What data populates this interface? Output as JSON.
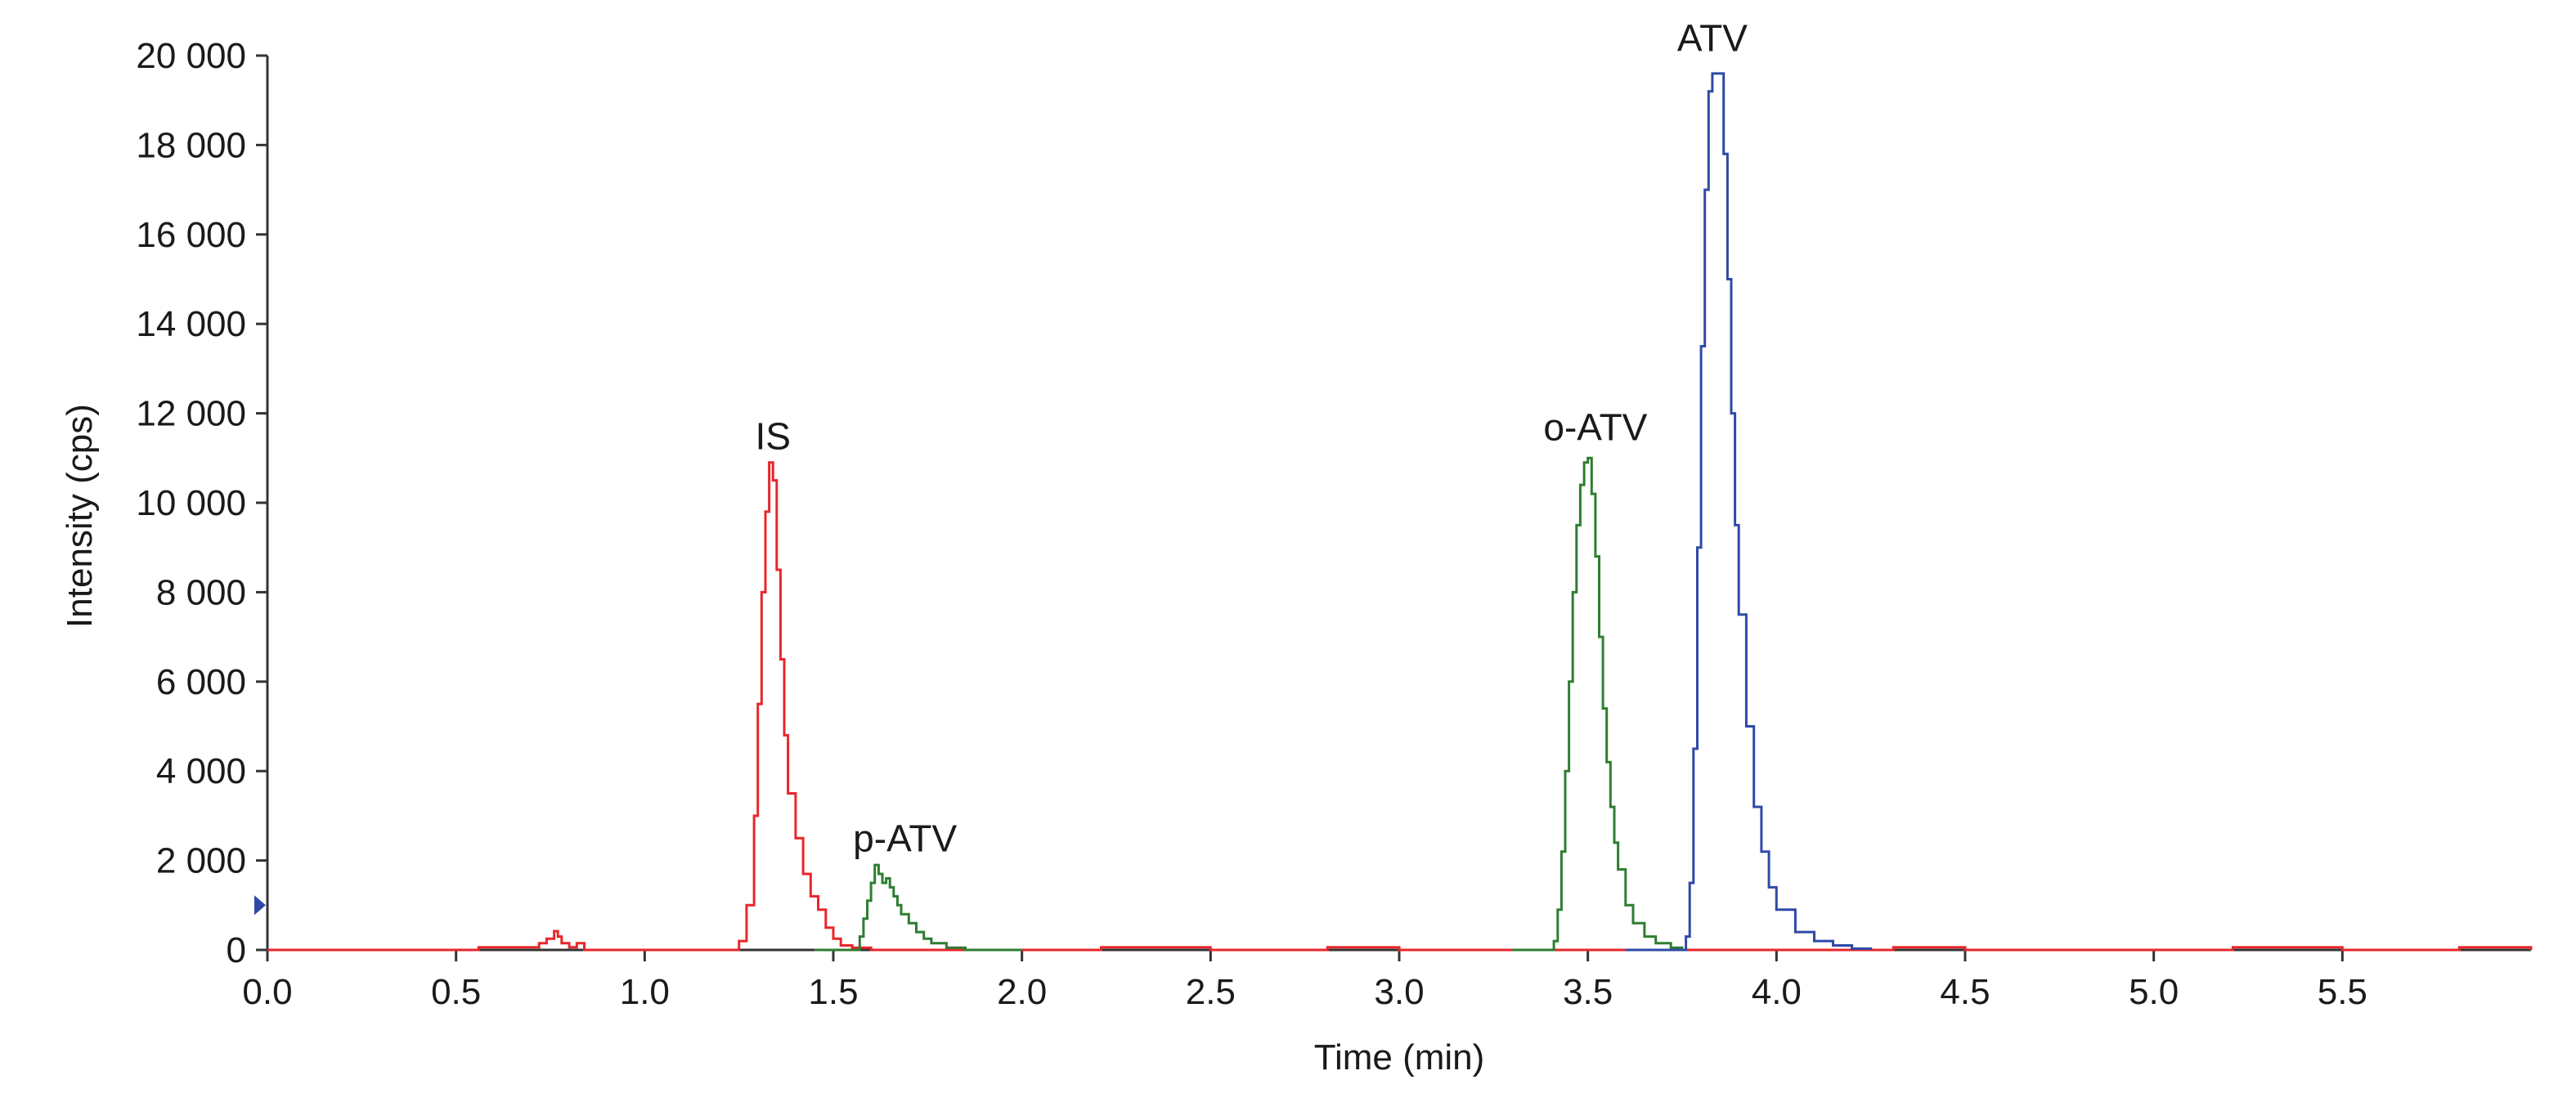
{
  "chart_data": {
    "type": "line",
    "title": "",
    "xlabel": "Time (min)",
    "ylabel": "Intensity (cps)",
    "xlim": [
      0.0,
      6.0
    ],
    "ylim": [
      0,
      20000
    ],
    "grid": false,
    "x_ticks": [
      0.0,
      0.5,
      1.0,
      1.5,
      2.0,
      2.5,
      3.0,
      3.5,
      4.0,
      4.5,
      5.0,
      5.5
    ],
    "x_tick_labels": [
      "0.0",
      "0.5",
      "1.0",
      "1.5",
      "2.0",
      "2.5",
      "3.0",
      "3.5",
      "4.0",
      "4.5",
      "5.0",
      "5.5"
    ],
    "y_ticks": [
      0,
      2000,
      4000,
      6000,
      8000,
      10000,
      12000,
      14000,
      16000,
      18000,
      20000
    ],
    "y_tick_labels": [
      "0",
      "2 000",
      "4 000",
      "6 000",
      "8 000",
      "10 000",
      "12 000",
      "14 000",
      "16 000",
      "18 000",
      "20 000"
    ],
    "series": [
      {
        "name": "IS",
        "color": "#e8262b",
        "x": [
          0.0,
          0.5,
          0.55,
          0.56,
          0.6,
          0.62,
          0.7,
          0.72,
          0.74,
          0.76,
          0.77,
          0.78,
          0.8,
          0.82,
          0.84,
          0.9,
          1.0,
          1.1,
          1.2,
          1.25,
          1.27,
          1.29,
          1.3,
          1.31,
          1.32,
          1.33,
          1.34,
          1.35,
          1.36,
          1.37,
          1.38,
          1.4,
          1.42,
          1.44,
          1.46,
          1.48,
          1.5,
          1.52,
          1.55,
          1.6,
          2.0,
          2.2,
          2.21,
          2.5,
          2.8,
          2.81,
          3.0,
          3.5,
          4.0,
          4.3,
          4.31,
          4.5,
          5.2,
          5.21,
          5.5,
          5.8,
          5.81,
          6.0
        ],
        "values": [
          0,
          0,
          0,
          60,
          60,
          60,
          60,
          150,
          250,
          420,
          300,
          150,
          60,
          150,
          0,
          0,
          0,
          0,
          0,
          200,
          1000,
          3000,
          5500,
          8000,
          9800,
          10900,
          10500,
          8500,
          6500,
          4800,
          3500,
          2500,
          1700,
          1200,
          900,
          500,
          250,
          100,
          50,
          0,
          0,
          0,
          60,
          0,
          0,
          60,
          0,
          0,
          0,
          0,
          60,
          0,
          0,
          60,
          0,
          0,
          60,
          0
        ]
      },
      {
        "name": "p-ATV",
        "color": "#2e7d32",
        "x": [
          1.45,
          1.55,
          1.57,
          1.58,
          1.59,
          1.6,
          1.61,
          1.62,
          1.63,
          1.64,
          1.65,
          1.66,
          1.67,
          1.68,
          1.7,
          1.72,
          1.74,
          1.76,
          1.8,
          1.85,
          2.0
        ],
        "values": [
          0,
          0,
          300,
          700,
          1100,
          1500,
          1900,
          1700,
          1500,
          1600,
          1400,
          1200,
          1000,
          800,
          600,
          400,
          250,
          150,
          50,
          0,
          0
        ]
      },
      {
        "name": "o-ATV",
        "color": "#2e7d32",
        "x": [
          3.3,
          3.38,
          3.41,
          3.42,
          3.43,
          3.44,
          3.45,
          3.46,
          3.47,
          3.48,
          3.49,
          3.5,
          3.51,
          3.52,
          3.53,
          3.54,
          3.55,
          3.56,
          3.57,
          3.58,
          3.6,
          3.62,
          3.65,
          3.68,
          3.72,
          3.75
        ],
        "values": [
          0,
          0,
          200,
          900,
          2200,
          4000,
          6000,
          8000,
          9500,
          10400,
          10900,
          11000,
          10200,
          8800,
          7000,
          5400,
          4200,
          3200,
          2400,
          1800,
          1000,
          600,
          300,
          150,
          50,
          0
        ]
      },
      {
        "name": "ATV",
        "color": "#2f49a6",
        "x": [
          3.6,
          3.74,
          3.76,
          3.77,
          3.78,
          3.79,
          3.8,
          3.81,
          3.82,
          3.83,
          3.84,
          3.85,
          3.86,
          3.87,
          3.88,
          3.89,
          3.9,
          3.92,
          3.94,
          3.96,
          3.98,
          4.0,
          4.05,
          4.1,
          4.15,
          4.2,
          4.25
        ],
        "values": [
          0,
          0,
          300,
          1500,
          4500,
          9000,
          13500,
          17000,
          19200,
          19600,
          19600,
          19600,
          17800,
          15000,
          12000,
          9500,
          7500,
          5000,
          3200,
          2200,
          1400,
          900,
          400,
          200,
          100,
          30,
          0
        ]
      }
    ],
    "annotations": [
      {
        "text": "IS",
        "x": 1.34,
        "y": 11200
      },
      {
        "text": "p-ATV",
        "x": 1.69,
        "y": 2200
      },
      {
        "text": "o-ATV",
        "x": 3.52,
        "y": 11400
      },
      {
        "text": "ATV",
        "x": 3.83,
        "y": 20100
      }
    ],
    "marker": {
      "name": "y-axis-marker",
      "y": 1000,
      "color": "#2f49a6"
    }
  }
}
